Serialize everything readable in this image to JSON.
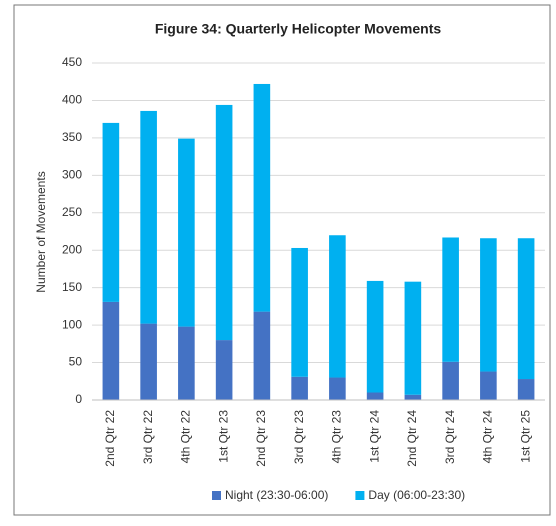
{
  "chart_data": {
    "type": "stacked_bar",
    "title": "Figure 34: Quarterly Helicopter Movements",
    "y_label": "Number of Movements",
    "categories": [
      "2nd Qtr 22",
      "3rd Qtr 22",
      "4th Qtr 22",
      "1st Qtr 23",
      "2nd Qtr 23",
      "3rd Qtr 23",
      "4th Qtr 23",
      "1st Qtr 24",
      "2nd Qtr 24",
      "3rd Qtr 24",
      "4th Qtr 24",
      "1st Qtr 25"
    ],
    "series": [
      {
        "name": "Night (23:30-06:00)",
        "color": "#4472c4",
        "values": [
          131,
          102,
          98,
          80,
          118,
          31,
          30,
          10,
          7,
          51,
          38,
          28
        ]
      },
      {
        "name": "Day (06:00-23:30)",
        "color": "#00b0f0",
        "values": [
          239,
          284,
          251,
          314,
          304,
          172,
          190,
          149,
          151,
          166,
          178,
          188
        ]
      }
    ],
    "ylim": [
      0,
      450
    ],
    "yticks": [
      0,
      50,
      100,
      150,
      200,
      250,
      300,
      350,
      400,
      450
    ],
    "grid": true,
    "legend": "bottom"
  }
}
